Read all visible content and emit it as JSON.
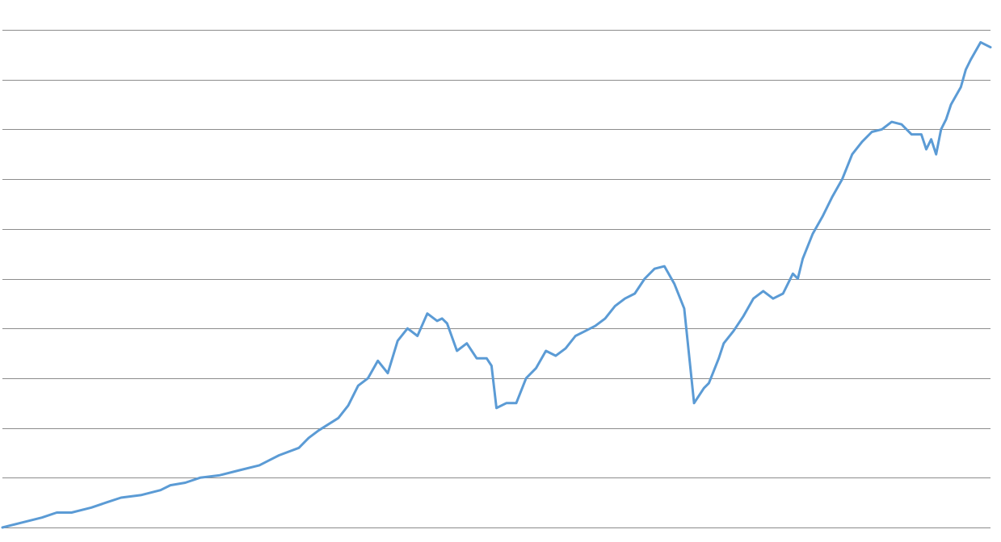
{
  "chart_data": {
    "type": "line",
    "title": "",
    "xlabel": "",
    "ylabel": "",
    "grid": true,
    "legend": "none",
    "ylim": [
      0,
      10
    ],
    "xlim": [
      0,
      100
    ],
    "gridline_count": 11,
    "line_color": "#5b9bd5",
    "grid_color": "#8c8c8c",
    "x": [
      0,
      2,
      4,
      5.5,
      7,
      9,
      10.5,
      12,
      14,
      15,
      16,
      17,
      18.5,
      20,
      22,
      24,
      26,
      27,
      28,
      30,
      31,
      32,
      34,
      35,
      36,
      37,
      38,
      39,
      40,
      41,
      42,
      43,
      44,
      44.5,
      45,
      46,
      47,
      48,
      49,
      49.5,
      50,
      51,
      52,
      53,
      54,
      55,
      56,
      57,
      58,
      59,
      60,
      61,
      62,
      63,
      64,
      65,
      66,
      67,
      68,
      69,
      70,
      71,
      71.5,
      72,
      72.5,
      73,
      74,
      75,
      76,
      77,
      78,
      79,
      80,
      80.5,
      81,
      82,
      83,
      84,
      85,
      86,
      87,
      88,
      89,
      90,
      91,
      92,
      93,
      93.5,
      94,
      94.5,
      95,
      95.5,
      96,
      97,
      97.5,
      98,
      99,
      100
    ],
    "y": [
      0,
      0.1,
      0.2,
      0.3,
      0.3,
      0.4,
      0.5,
      0.6,
      0.65,
      0.7,
      0.75,
      0.85,
      0.9,
      1.0,
      1.05,
      1.15,
      1.25,
      1.35,
      1.45,
      1.6,
      1.8,
      1.95,
      2.2,
      2.45,
      2.85,
      3.0,
      3.35,
      3.1,
      3.75,
      4.0,
      3.85,
      4.3,
      4.15,
      4.2,
      4.1,
      3.55,
      3.7,
      3.4,
      3.4,
      3.25,
      2.4,
      2.5,
      2.5,
      3.0,
      3.2,
      3.55,
      3.45,
      3.6,
      3.85,
      3.95,
      4.05,
      4.2,
      4.45,
      4.6,
      4.7,
      5.0,
      5.2,
      5.25,
      4.9,
      4.4,
      2.5,
      2.8,
      2.9,
      3.15,
      3.4,
      3.7,
      3.95,
      4.25,
      4.6,
      4.75,
      4.6,
      4.7,
      5.1,
      5.0,
      5.4,
      5.9,
      6.25,
      6.65,
      7.0,
      7.5,
      7.75,
      7.95,
      8.0,
      8.15,
      8.1,
      7.9,
      7.9,
      7.6,
      7.8,
      7.5,
      8.0,
      8.2,
      8.5,
      8.85,
      9.2,
      9.4,
      9.75,
      9.65
    ]
  }
}
